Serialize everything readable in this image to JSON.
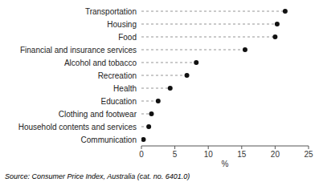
{
  "chart_data": {
    "type": "lollipop",
    "orientation": "horizontal",
    "categories": [
      "Transportation",
      "Housing",
      "Food",
      "Financial and insurance services",
      "Alcohol and tobacco",
      "Recreation",
      "Health",
      "Education",
      "Clothing and footwear",
      "Household contents and services",
      "Communication"
    ],
    "values": [
      21.5,
      20.3,
      20.0,
      15.5,
      8.2,
      6.8,
      4.3,
      2.5,
      1.5,
      1.1,
      0.3
    ],
    "xlim": [
      0,
      25
    ],
    "xticks": [
      0,
      5,
      10,
      15,
      20,
      25
    ],
    "xlabel": "%",
    "color": "#111111",
    "line_style": "dashed",
    "grid": false,
    "annotation": "Source: Consumer Price Index, Australia  (cat.  no.  6401.0)"
  }
}
